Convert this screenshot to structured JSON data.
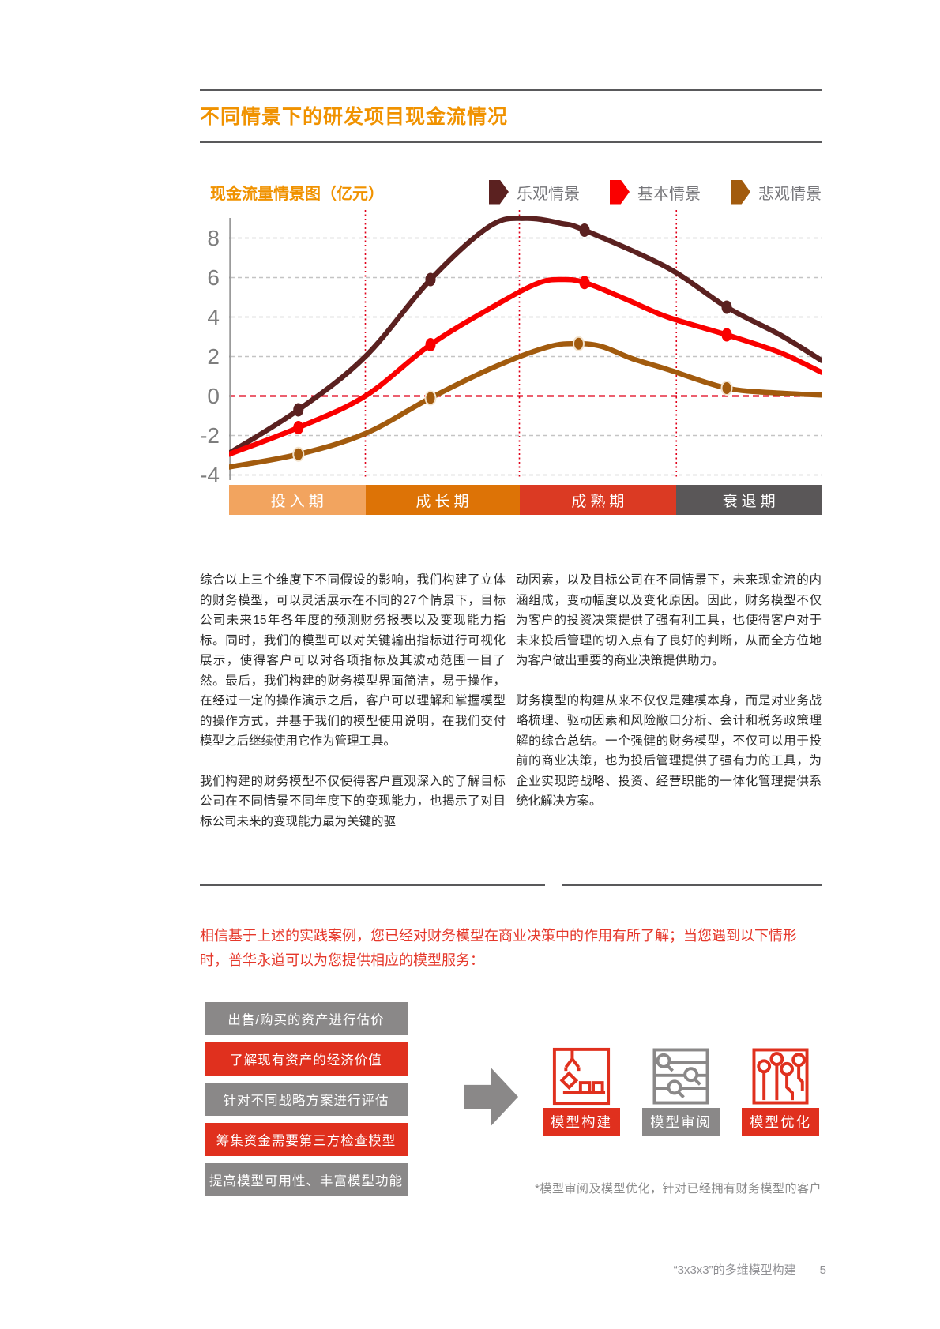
{
  "page": {
    "title": "不同情景下的研发项目现金流情况",
    "footer": {
      "text": "“3x3x3”的多维模型构建",
      "page_number": "5"
    }
  },
  "chart": {
    "title": "现金流量情景图（亿元）",
    "legend": [
      {
        "label": "乐观情景",
        "color": "#5b2120"
      },
      {
        "label": "基本情景",
        "color": "#fa0000"
      },
      {
        "label": "悲观情景",
        "color": "#a25b0e"
      }
    ]
  },
  "chart_data": {
    "type": "line",
    "title": "现金流量情景图（亿元）",
    "unit": "亿元",
    "ylim": [
      -4.3,
      9.5
    ],
    "yticks": [
      8,
      6,
      4,
      2,
      0,
      -2,
      -4
    ],
    "grid": "dashed horizontal, red dashed zero line, dotted red vertical phase dividers",
    "legend_position": "top-right",
    "x_dividers_pct": [
      23,
      49,
      75.5
    ],
    "phases": [
      {
        "label": "投入期",
        "color": "#f2a45f",
        "span_pct": [
          0,
          23
        ]
      },
      {
        "label": "成长期",
        "color": "#dd7306",
        "span_pct": [
          23,
          49
        ]
      },
      {
        "label": "成熟期",
        "color": "#db3a23",
        "span_pct": [
          49,
          75.5
        ]
      },
      {
        "label": "衰退期",
        "color": "#5a5758",
        "span_pct": [
          75.5,
          100
        ]
      }
    ],
    "series": [
      {
        "name": "乐观情景",
        "color": "#5b2120",
        "points": [
          [
            0,
            -2.9
          ],
          [
            11.7,
            -0.7
          ],
          [
            23,
            2.0
          ],
          [
            34,
            5.9
          ],
          [
            44,
            8.6
          ],
          [
            50,
            9.0
          ],
          [
            56,
            8.75
          ],
          [
            60,
            8.4
          ],
          [
            74,
            6.5
          ],
          [
            84,
            4.5
          ],
          [
            93,
            3.1
          ],
          [
            100,
            1.8
          ]
        ],
        "markers": [
          [
            11.7,
            -0.7
          ],
          [
            34,
            5.9
          ],
          [
            60,
            8.4
          ],
          [
            84,
            4.5
          ]
        ]
      },
      {
        "name": "基本情景",
        "color": "#fa0000",
        "points": [
          [
            0,
            -2.95
          ],
          [
            11.7,
            -1.6
          ],
          [
            23,
            0.0
          ],
          [
            34,
            2.6
          ],
          [
            45,
            4.6
          ],
          [
            52,
            5.7
          ],
          [
            56,
            5.9
          ],
          [
            60,
            5.75
          ],
          [
            67,
            4.9
          ],
          [
            74,
            4.0
          ],
          [
            84,
            3.1
          ],
          [
            93,
            2.2
          ],
          [
            100,
            1.2
          ]
        ],
        "markers": [
          [
            11.7,
            -1.6
          ],
          [
            34,
            2.6
          ],
          [
            60,
            5.75
          ],
          [
            84,
            3.1
          ]
        ]
      },
      {
        "name": "悲观情景",
        "color": "#a25b0e",
        "points": [
          [
            0,
            -3.6
          ],
          [
            11.7,
            -2.95
          ],
          [
            23,
            -1.9
          ],
          [
            34,
            -0.1
          ],
          [
            45,
            1.5
          ],
          [
            54,
            2.5
          ],
          [
            59,
            2.65
          ],
          [
            63,
            2.5
          ],
          [
            68,
            1.9
          ],
          [
            74,
            1.35
          ],
          [
            84,
            0.4
          ],
          [
            93,
            0.15
          ],
          [
            100,
            0.05
          ]
        ],
        "markers": [
          [
            11.7,
            -2.95
          ],
          [
            34,
            -0.1
          ],
          [
            59,
            2.65
          ],
          [
            84,
            0.4
          ]
        ]
      }
    ]
  },
  "body": {
    "columns": [
      {
        "paragraphs": [
          "综合以上三个维度下不同假设的影响，我们构建了立体的财务模型，可以灵活展示在不同的27个情景下，目标公司未来15年各年度的预测财务报表以及变现能力指标。同时，我们的模型可以对关键输出指标进行可视化展示，使得客户可以对各项指标及其波动范围一目了然。最后，我们构建的财务模型界面简洁，易于操作，在经过一定的操作演示之后，客户可以理解和掌握模型的操作方式，并基于我们的模型使用说明，在我们交付模型之后继续使用它作为管理工具。",
          "我们构建的财务模型不仅使得客户直观深入的了解目标公司在不同情景不同年度下的变现能力，也揭示了对目标公司未来的变现能力最为关键的驱"
        ]
      },
      {
        "paragraphs": [
          "动因素，以及目标公司在不同情景下，未来现金流的内涵组成，变动幅度以及变化原因。因此，财务模型不仅为客户的投资决策提供了强有利工具，也使得客户对于未来投后管理的切入点有了良好的判断，从而全方位地为客户做出重要的商业决策提供助力。",
          "财务模型的构建从来不仅仅是建模本身，而是对业务战略梳理、驱动因素和风险敞口分析、会计和税务政策理解的综合总结。一个强健的财务模型，不仅可以用于投前的商业决策，也为投后管理提供了强有力的工具，为企业实现跨战略、投资、经营职能的一体化管理提供系统化解决方案。"
        ]
      }
    ]
  },
  "lead": {
    "text": "相信基于上述的实践案例，您已经对财务模型在商业决策中的作用有所了解；当您遇到以下情形时，普华永道可以为您提供相应的模型服务："
  },
  "services": {
    "items": [
      {
        "label": "出售/购买的资产进行估价",
        "highlight": false
      },
      {
        "label": "了解现有资产的经济价值",
        "highlight": true
      },
      {
        "label": "针对不同战略方案进行评估",
        "highlight": false
      },
      {
        "label": "筹集资金需要第三方检查模型",
        "highlight": true
      },
      {
        "label": "提高模型可用性、丰富模型功能",
        "highlight": false
      }
    ],
    "outcomes": [
      {
        "label": "模型构建",
        "icon": "crane-build-icon",
        "highlight": true
      },
      {
        "label": "模型审阅",
        "icon": "magnifier-review-icon",
        "highlight": false
      },
      {
        "label": "模型优化",
        "icon": "circuit-optimize-icon",
        "highlight": true
      }
    ],
    "footnote": "*模型审阅及模型优化，针对已经拥有财务模型的客户"
  },
  "colors": {
    "accent_orange": "#f09200",
    "pwc_red": "#e0301e",
    "gray_box": "#8a8888",
    "rule_gray": "#59595b",
    "legend_text_gray": "#76767a",
    "zero_line_red": "#e00019",
    "gridline_gray": "#c4c4c4"
  }
}
